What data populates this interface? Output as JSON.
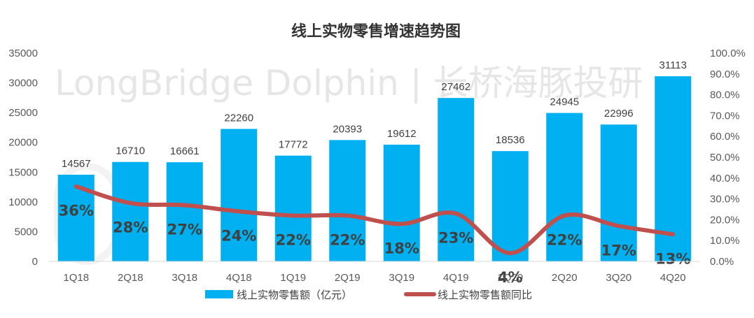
{
  "chart_data": {
    "type": "bar+line",
    "title": "线上实物零售增速趋势图",
    "categories": [
      "1Q18",
      "2Q18",
      "3Q18",
      "4Q18",
      "1Q19",
      "2Q19",
      "3Q19",
      "4Q19",
      "1Q20",
      "2Q20",
      "3Q20",
      "4Q20"
    ],
    "series": [
      {
        "name": "线上实物零售额（亿元）",
        "type": "bar",
        "axis": "left",
        "color": "#00B0F0",
        "values": [
          14567,
          16710,
          16661,
          22260,
          17772,
          20393,
          19612,
          27462,
          18536,
          24945,
          22996,
          31113
        ]
      },
      {
        "name": "线上实物零售额同比",
        "type": "line",
        "axis": "right",
        "color": "#C0504D",
        "values": [
          0.36,
          0.28,
          0.27,
          0.24,
          0.22,
          0.22,
          0.18,
          0.23,
          0.04,
          0.22,
          0.17,
          0.13
        ],
        "labels": [
          "36%",
          "28%",
          "27%",
          "24%",
          "22%",
          "22%",
          "18%",
          "23%",
          "4%",
          "22%",
          "17%",
          "13%"
        ]
      }
    ],
    "bar_labels": [
      "14567",
      "16710",
      "16661",
      "22260",
      "17772",
      "20393",
      "19612",
      "27462",
      "18536",
      "24945",
      "22996",
      "31113"
    ],
    "y_left": {
      "min": 0,
      "max": 35000,
      "ticks": [
        "0",
        "5000",
        "10000",
        "15000",
        "20000",
        "25000",
        "30000",
        "35000"
      ]
    },
    "y_right": {
      "min": 0,
      "max": 1.0,
      "ticks": [
        "0.0%",
        "10.0%",
        "20.0%",
        "30.0%",
        "40.0%",
        "50.0%",
        "60.0%",
        "70.0%",
        "80.0%",
        "90.0%",
        "100.0%"
      ]
    },
    "grid": false,
    "legend_position": "bottom"
  },
  "watermark": {
    "text": "LongBridge Dolphin | 长桥海豚投研"
  }
}
